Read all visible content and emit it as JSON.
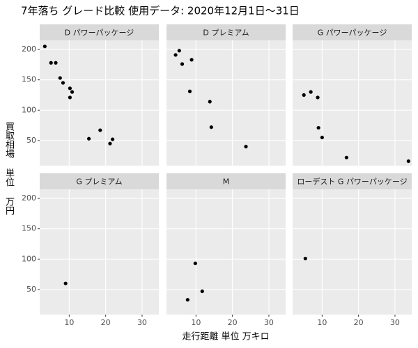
{
  "chart_data": {
    "type": "scatter",
    "title": "7年落ち グレード比較 使用データ: 2020年12月1日～31日",
    "x_label": "走行距離 単位 万キロ",
    "y_label": "買取相場 単位 万円",
    "xlim": [
      1.9,
      34.6
    ],
    "ylim": [
      8.6,
      215
    ],
    "xticks": [
      10,
      20,
      30
    ],
    "yticks": [
      50,
      100,
      150,
      200
    ],
    "grid": true,
    "color": "#000000",
    "facets": [
      {
        "name": "D パワーパッケージ",
        "x": [
          3.3,
          5.0,
          6.3,
          7.5,
          8.3,
          10.2,
          10.2,
          10.8,
          15.4,
          18.5,
          21.2,
          21.9
        ],
        "y": [
          205,
          178,
          178,
          153,
          145,
          136,
          121,
          130,
          53,
          67,
          45,
          52
        ]
      },
      {
        "name": "D プレミアム",
        "x": [
          4.4,
          5.4,
          6.2,
          8.8,
          8.3,
          13.8,
          14.2,
          23.7
        ],
        "y": [
          191,
          198,
          176,
          183,
          131,
          114,
          72,
          40
        ]
      },
      {
        "name": "G パワーパッケージ",
        "x": [
          5.0,
          6.9,
          8.8,
          9.0,
          10.0,
          16.7,
          33.7
        ],
        "y": [
          125,
          130,
          121,
          71,
          55,
          22,
          16
        ]
      },
      {
        "name": "G プレミアム",
        "x": [
          9.0
        ],
        "y": [
          60
        ]
      },
      {
        "name": "M",
        "x": [
          9.8,
          11.7,
          7.7
        ],
        "y": [
          93,
          47,
          33
        ]
      },
      {
        "name": "ローデスト G パワーパッケージ",
        "x": [
          5.4
        ],
        "y": [
          101
        ]
      }
    ]
  }
}
